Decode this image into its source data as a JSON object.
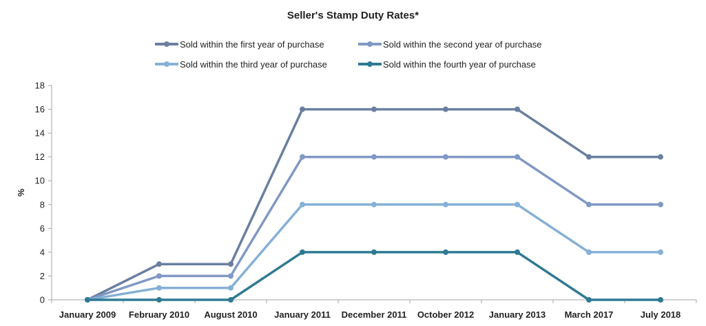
{
  "chart_data": {
    "type": "line",
    "title": "Seller's Stamp Duty Rates*",
    "ylabel": "%",
    "xlabel": "",
    "ylim": [
      0,
      18
    ],
    "yticks": [
      0,
      2,
      4,
      6,
      8,
      10,
      12,
      14,
      16,
      18
    ],
    "grid": false,
    "legend_position": "top",
    "categories": [
      "January 2009",
      "February 2010",
      "August 2010",
      "January 2011",
      "December 2011",
      "October 2012",
      "January 2013",
      "March 2017",
      "July 2018"
    ],
    "series": [
      {
        "name": "Sold within the first year of purchase",
        "color": "#6a7fa0",
        "values": [
          0,
          3,
          3,
          16,
          16,
          16,
          16,
          12,
          12
        ]
      },
      {
        "name": "Sold within the second year of purchase",
        "color": "#8098c4",
        "values": [
          0,
          2,
          2,
          12,
          12,
          12,
          12,
          8,
          8
        ]
      },
      {
        "name": "Sold within the third year of purchase",
        "color": "#86b0d6",
        "values": [
          0,
          1,
          1,
          8,
          8,
          8,
          8,
          4,
          4
        ]
      },
      {
        "name": "Sold within the fourth year of purchase",
        "color": "#2f7a93",
        "values": [
          0,
          0,
          0,
          4,
          4,
          4,
          4,
          0,
          0
        ]
      }
    ]
  }
}
